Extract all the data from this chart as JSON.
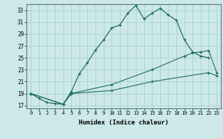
{
  "xlabel": "Humidex (Indice chaleur)",
  "ylabel": "",
  "background_color": "#cce8e8",
  "grid_color": "#aacfcf",
  "line_color": "#1a6b5a",
  "xlim": [
    -0.5,
    23.5
  ],
  "ylim": [
    16.5,
    34.0
  ],
  "xticks": [
    0,
    1,
    2,
    3,
    4,
    5,
    6,
    7,
    8,
    9,
    10,
    11,
    12,
    13,
    14,
    15,
    16,
    17,
    18,
    19,
    20,
    21,
    22,
    23
  ],
  "yticks": [
    17,
    19,
    21,
    23,
    25,
    27,
    29,
    31,
    33
  ],
  "line1_x": [
    0,
    1,
    2,
    3,
    4,
    5,
    6,
    7,
    8,
    9,
    10,
    11,
    12,
    13,
    14,
    15,
    16,
    17,
    18,
    19,
    20,
    21,
    22
  ],
  "line1_y": [
    19.0,
    18.2,
    17.5,
    17.3,
    17.2,
    19.3,
    22.3,
    24.2,
    26.3,
    28.0,
    30.0,
    30.5,
    32.5,
    33.8,
    31.5,
    32.5,
    33.3,
    32.2,
    31.3,
    28.0,
    26.0,
    25.3,
    25.0
  ],
  "line2_x": [
    0,
    4,
    5,
    10,
    15,
    19,
    20,
    21,
    22,
    23
  ],
  "line2_y": [
    19.0,
    17.2,
    19.0,
    20.5,
    23.0,
    25.3,
    25.8,
    26.0,
    26.2,
    22.5
  ],
  "line3_x": [
    0,
    4,
    5,
    10,
    15,
    22,
    23
  ],
  "line3_y": [
    19.0,
    17.2,
    19.0,
    19.5,
    21.0,
    22.5,
    22.0
  ]
}
